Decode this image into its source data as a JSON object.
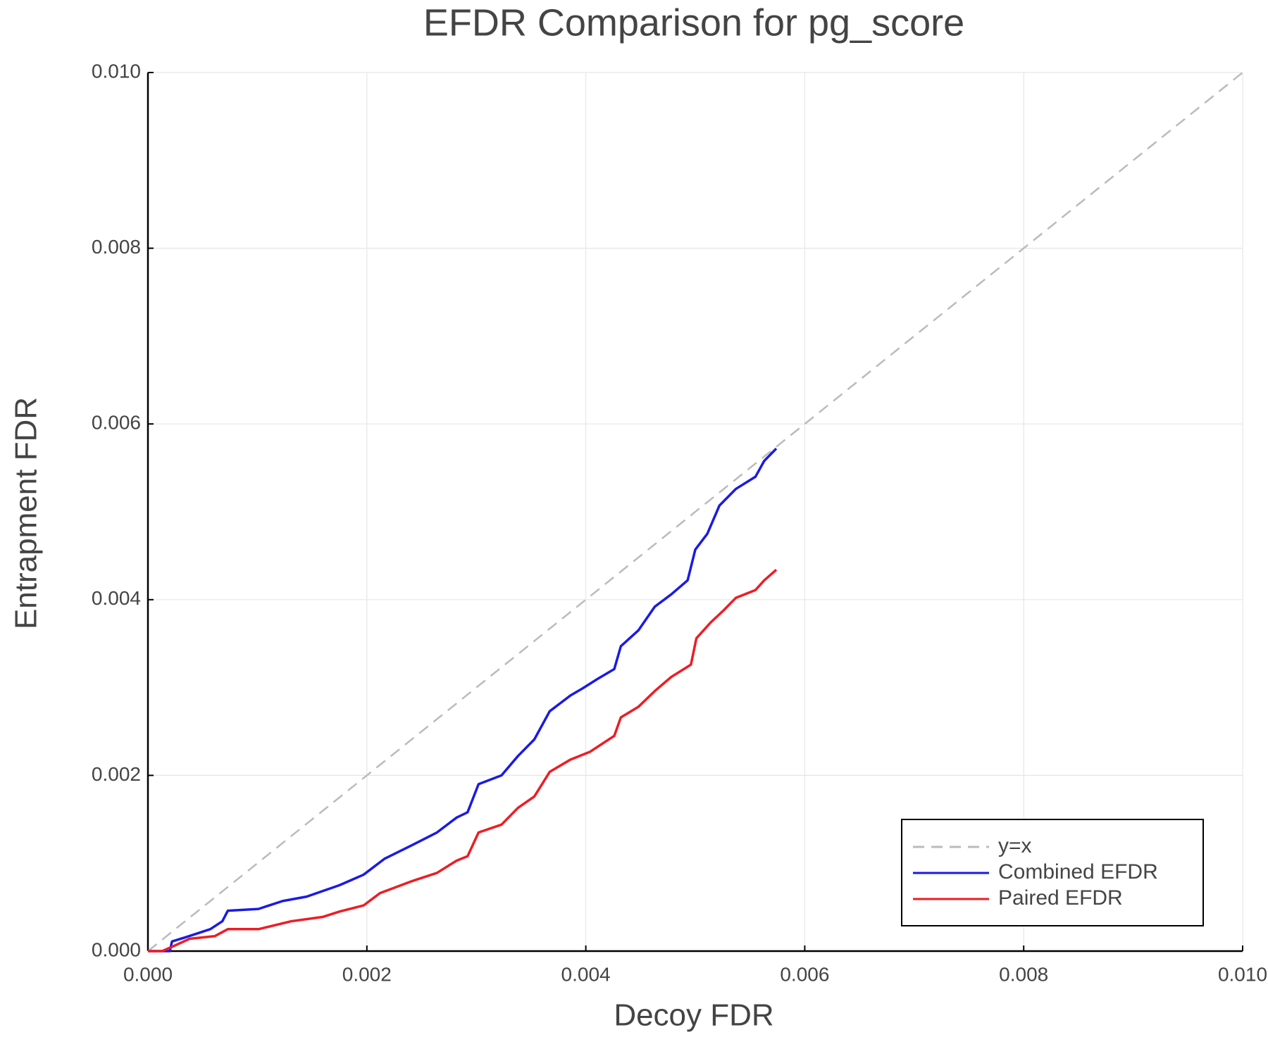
{
  "chart_data": {
    "type": "line",
    "title": "EFDR Comparison for pg_score",
    "x_label": "Decoy FDR",
    "y_label": "Entrapment FDR",
    "xlim": [
      0,
      0.01
    ],
    "ylim": [
      0,
      0.01
    ],
    "xticks": [
      {
        "value": 0,
        "label": "0.000"
      },
      {
        "value": 0.002,
        "label": "0.002"
      },
      {
        "value": 0.004,
        "label": "0.004"
      },
      {
        "value": 0.006,
        "label": "0.006"
      },
      {
        "value": 0.008,
        "label": "0.008"
      },
      {
        "value": 0.01,
        "label": "0.010"
      }
    ],
    "yticks": [
      {
        "value": 0,
        "label": "0.000"
      },
      {
        "value": 0.002,
        "label": "0.002"
      },
      {
        "value": 0.004,
        "label": "0.004"
      },
      {
        "value": 0.006,
        "label": "0.006"
      },
      {
        "value": 0.008,
        "label": "0.008"
      },
      {
        "value": 0.01,
        "label": "0.010"
      }
    ],
    "grid": true,
    "legend": "lower right",
    "series": [
      {
        "name": "y=x",
        "color": "#bbbbbb",
        "style": "dashed",
        "x": [
          0,
          0.01
        ],
        "values": [
          0,
          0.01
        ]
      },
      {
        "name": "Combined EFDR",
        "color": "#1a1ae6",
        "style": "solid",
        "x": [
          0,
          0.0002,
          0.00022,
          0.00035,
          0.00057,
          0.00068,
          0.00073,
          0.00101,
          0.00123,
          0.00145,
          0.00175,
          0.00197,
          0.00216,
          0.00242,
          0.00264,
          0.00282,
          0.00292,
          0.00302,
          0.00323,
          0.00338,
          0.00353,
          0.00367,
          0.00386,
          0.00397,
          0.00411,
          0.00426,
          0.00432,
          0.00448,
          0.00463,
          0.00478,
          0.00493,
          0.005,
          0.00511,
          0.00522,
          0.00537,
          0.00555,
          0.00563,
          0.00574
        ],
        "values": [
          0,
          0,
          0.00011,
          0.00016,
          0.00025,
          0.00034,
          0.00046,
          0.00048,
          0.00057,
          0.00062,
          0.00075,
          0.00087,
          0.00105,
          0.00121,
          0.00135,
          0.00152,
          0.00158,
          0.0019,
          0.002,
          0.00222,
          0.00241,
          0.00273,
          0.00291,
          0.00299,
          0.0031,
          0.00321,
          0.00347,
          0.00365,
          0.00392,
          0.00406,
          0.00422,
          0.00457,
          0.00475,
          0.00507,
          0.00526,
          0.0054,
          0.00558,
          0.00572
        ]
      },
      {
        "name": "Paired EFDR",
        "color": "#ee1c24",
        "style": "solid",
        "x": [
          0,
          0.00013,
          0.00024,
          0.00038,
          0.00061,
          0.00073,
          0.00101,
          0.00131,
          0.0016,
          0.00175,
          0.00197,
          0.00212,
          0.00242,
          0.00264,
          0.00282,
          0.00292,
          0.00302,
          0.00323,
          0.00338,
          0.00353,
          0.00367,
          0.00386,
          0.00404,
          0.00426,
          0.00432,
          0.00448,
          0.00463,
          0.00478,
          0.00496,
          0.00501,
          0.00514,
          0.00526,
          0.00537,
          0.00555,
          0.00563,
          0.00574
        ],
        "values": [
          0,
          0,
          6e-05,
          0.00014,
          0.00017,
          0.00025,
          0.00025,
          0.00034,
          0.00039,
          0.00045,
          0.00052,
          0.00066,
          0.0008,
          0.00089,
          0.00103,
          0.00108,
          0.00135,
          0.00144,
          0.00163,
          0.00176,
          0.00204,
          0.00218,
          0.00227,
          0.00245,
          0.00266,
          0.00278,
          0.00296,
          0.00312,
          0.00326,
          0.00356,
          0.00374,
          0.00388,
          0.00402,
          0.00411,
          0.00422,
          0.00434
        ]
      }
    ]
  }
}
